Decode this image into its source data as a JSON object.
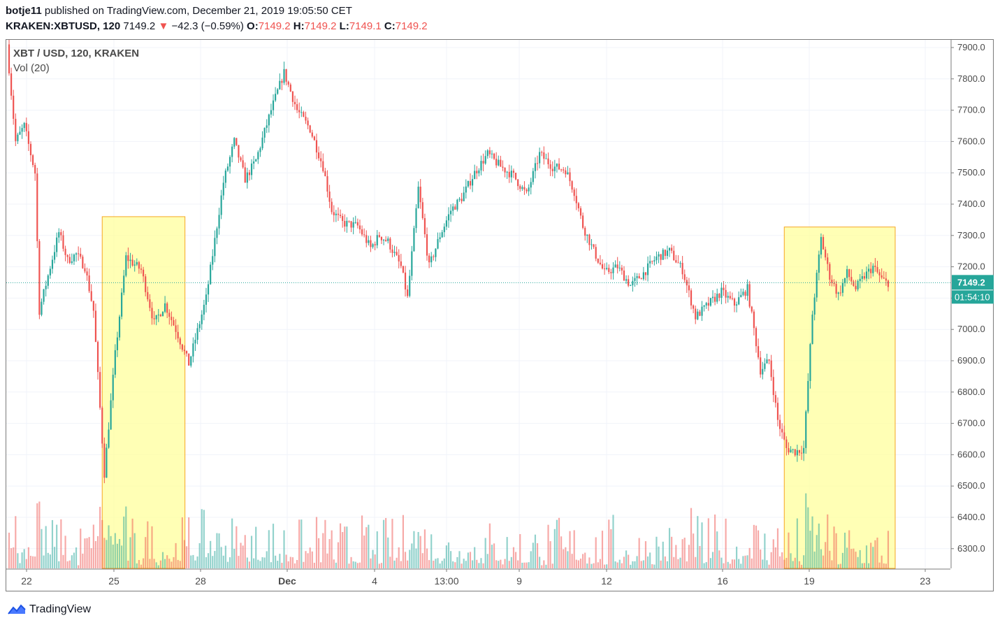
{
  "header": {
    "author": "botje11",
    "published_text": "published on TradingView.com, December 21, 2019 19:05:50 CET",
    "symbol": "KRAKEN:XBTUSD, 120",
    "last_price": "7149.2",
    "change": "−42.3 (−0.59%)",
    "o_label": "O:",
    "o_value": "7149.2",
    "h_label": "H:",
    "h_value": "7149.2",
    "l_label": "L:",
    "l_value": "7149.1",
    "c_label": "C:",
    "c_value": "7149.2"
  },
  "pane": {
    "title": "XBT / USD, 120, KRAKEN",
    "volume_label": "Vol (20)"
  },
  "footer": {
    "brand": "TradingView"
  },
  "colors": {
    "up": "#26a69a",
    "down": "#ef5350",
    "highlight_fill": "#ffff9c",
    "highlight_border": "#f5a623",
    "price_line": "#26a69a"
  },
  "chart_data": {
    "type": "candlestick",
    "interval": "120",
    "ylim": [
      6240,
      7930
    ],
    "y_ticks": [
      "7900.0",
      "7800.0",
      "7700.0",
      "7600.0",
      "7500.0",
      "7400.0",
      "7300.0",
      "7200.0",
      "7100.0",
      "7000.0",
      "6900.0",
      "6800.0",
      "6700.0",
      "6600.0",
      "6500.0",
      "6400.0",
      "6300.0"
    ],
    "x_ticks": [
      "22",
      "25",
      "28",
      "Dec",
      "4",
      "13:00",
      "9",
      "12",
      "16",
      "19",
      "23"
    ],
    "last_price_label": "7149.2",
    "countdown_label": "01:54:10",
    "last_price": 7149.2,
    "price_path": [
      [
        0,
        7910
      ],
      [
        4,
        7600
      ],
      [
        8,
        7650
      ],
      [
        13,
        7500
      ],
      [
        15,
        7060
      ],
      [
        20,
        7200
      ],
      [
        24,
        7310
      ],
      [
        28,
        7220
      ],
      [
        32,
        7240
      ],
      [
        36,
        7200
      ],
      [
        40,
        7060
      ],
      [
        45,
        6540
      ],
      [
        50,
        6920
      ],
      [
        55,
        7230
      ],
      [
        62,
        7190
      ],
      [
        68,
        7020
      ],
      [
        73,
        7080
      ],
      [
        78,
        7000
      ],
      [
        84,
        6890
      ],
      [
        92,
        7100
      ],
      [
        100,
        7470
      ],
      [
        105,
        7600
      ],
      [
        110,
        7480
      ],
      [
        115,
        7540
      ],
      [
        122,
        7700
      ],
      [
        128,
        7820
      ],
      [
        134,
        7700
      ],
      [
        140,
        7640
      ],
      [
        146,
        7520
      ],
      [
        150,
        7380
      ],
      [
        155,
        7340
      ],
      [
        162,
        7330
      ],
      [
        168,
        7260
      ],
      [
        172,
        7300
      ],
      [
        176,
        7280
      ],
      [
        182,
        7200
      ],
      [
        185,
        7100
      ],
      [
        190,
        7450
      ],
      [
        195,
        7200
      ],
      [
        200,
        7300
      ],
      [
        205,
        7380
      ],
      [
        210,
        7420
      ],
      [
        216,
        7500
      ],
      [
        222,
        7560
      ],
      [
        228,
        7520
      ],
      [
        234,
        7490
      ],
      [
        240,
        7430
      ],
      [
        246,
        7560
      ],
      [
        252,
        7520
      ],
      [
        258,
        7510
      ],
      [
        262,
        7440
      ],
      [
        266,
        7330
      ],
      [
        271,
        7250
      ],
      [
        276,
        7180
      ],
      [
        282,
        7200
      ],
      [
        288,
        7140
      ],
      [
        294,
        7180
      ],
      [
        300,
        7230
      ],
      [
        306,
        7250
      ],
      [
        312,
        7190
      ],
      [
        318,
        7040
      ],
      [
        324,
        7080
      ],
      [
        330,
        7120
      ],
      [
        336,
        7080
      ],
      [
        342,
        7130
      ],
      [
        348,
        6870
      ],
      [
        352,
        6900
      ],
      [
        356,
        6710
      ],
      [
        360,
        6620
      ],
      [
        364,
        6610
      ],
      [
        368,
        6620
      ],
      [
        372,
        7050
      ],
      [
        376,
        7290
      ],
      [
        380,
        7170
      ],
      [
        384,
        7110
      ],
      [
        388,
        7180
      ],
      [
        392,
        7130
      ],
      [
        396,
        7170
      ],
      [
        400,
        7200
      ],
      [
        404,
        7160
      ],
      [
        406,
        7150
      ]
    ],
    "x_count": 407,
    "highlight_ranges": [
      [
        43,
        79
      ],
      [
        358,
        407
      ]
    ]
  }
}
